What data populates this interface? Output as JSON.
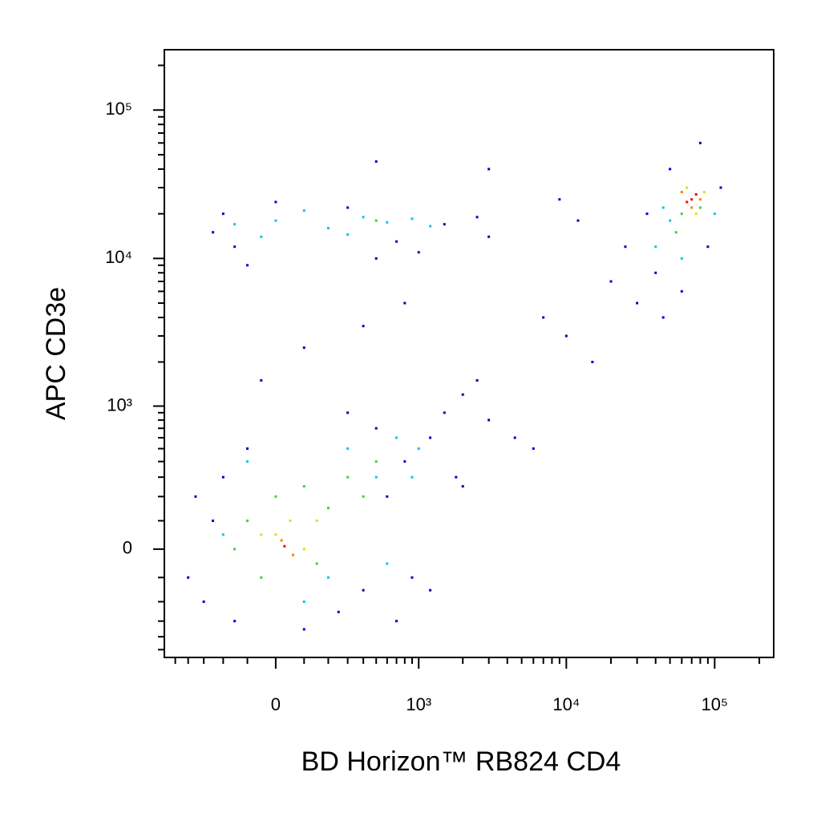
{
  "chart_data": {
    "type": "scatter",
    "x_label": "BD Horizon™ RB824 CD4",
    "y_label": "APC CD3e",
    "xscale": "biexponential",
    "yscale": "biexponential",
    "xlim": [
      -600,
      250000
    ],
    "ylim": [
      -570,
      255000
    ],
    "xticks": [
      0,
      {
        "value": 1000,
        "label": "10³"
      },
      {
        "value": 10000,
        "label": "10⁴"
      },
      {
        "value": 100000,
        "label": "10⁵"
      }
    ],
    "yticks": [
      0,
      {
        "value": 1000,
        "label": "10³"
      },
      {
        "value": 10000,
        "label": "10⁴"
      },
      {
        "value": 100000,
        "label": "10⁵"
      }
    ],
    "xminorticks": [
      -500,
      -400,
      -300,
      -200,
      -100,
      100,
      200,
      300,
      400,
      500,
      600,
      700,
      800,
      900,
      2000,
      3000,
      4000,
      5000,
      6000,
      7000,
      8000,
      9000,
      20000,
      30000,
      40000,
      50000,
      60000,
      70000,
      80000,
      90000,
      200000
    ],
    "yminorticks": [
      -500,
      -400,
      -300,
      -200,
      -100,
      100,
      200,
      300,
      400,
      500,
      600,
      700,
      800,
      900,
      2000,
      3000,
      4000,
      5000,
      6000,
      7000,
      8000,
      9000,
      20000,
      30000,
      40000,
      50000,
      60000,
      70000,
      80000,
      90000,
      200000
    ],
    "series": [
      {
        "color": "#0000c8",
        "x": [
          -300,
          -250,
          -200,
          -150,
          -100,
          250,
          400,
          600,
          800,
          1200,
          1500,
          2000,
          2500,
          3000,
          1800,
          900,
          500,
          300,
          -50,
          100,
          400,
          800,
          -150,
          -250,
          -200,
          0,
          300,
          700,
          1500,
          2500,
          3000,
          500,
          1000,
          -100,
          4500,
          6000,
          9000,
          12000,
          20000,
          25000,
          30000,
          35000,
          40000,
          45000,
          60000,
          90000,
          110000,
          50000,
          80000,
          3000,
          500,
          15000,
          10000,
          7000,
          2000,
          1200,
          -400,
          700,
          100,
          -350
        ],
        "y": [
          -200,
          100,
          300,
          -300,
          500,
          -250,
          -150,
          200,
          400,
          600,
          900,
          1200,
          1500,
          800,
          300,
          -100,
          700,
          900,
          1500,
          2500,
          3500,
          5000,
          12000,
          15000,
          20000,
          24000,
          22000,
          13000,
          17000,
          19000,
          14000,
          10000,
          11000,
          9000,
          600,
          500,
          25000,
          18000,
          7000,
          12000,
          5000,
          20000,
          8000,
          4000,
          6000,
          12000,
          30000,
          40000,
          60000,
          40000,
          45000,
          2000,
          3000,
          4000,
          250,
          -150,
          -100,
          -300,
          -350,
          200
        ]
      },
      {
        "color": "#00c8e6",
        "x": [
          -150,
          0,
          200,
          400,
          600,
          900,
          1200,
          -50,
          100,
          300,
          40000,
          50000,
          60000,
          45000,
          100000,
          -100,
          100,
          300,
          500,
          700,
          1000,
          -200,
          200,
          600,
          900
        ],
        "y": [
          17000,
          18000,
          16000,
          19000,
          17500,
          18500,
          16500,
          14000,
          21000,
          14500,
          12000,
          18000,
          10000,
          22000,
          20000,
          400,
          -200,
          500,
          300,
          600,
          500,
          50,
          -100,
          -50,
          300
        ]
      },
      {
        "color": "#40d040",
        "x": [
          -100,
          0,
          100,
          200,
          300,
          400,
          -50,
          150,
          500,
          -150,
          60000,
          55000,
          80000,
          500
        ],
        "y": [
          100,
          200,
          250,
          150,
          300,
          200,
          -100,
          -50,
          400,
          0,
          20000,
          15000,
          22000,
          18000
        ]
      },
      {
        "color": "#e0e000",
        "x": [
          0,
          50,
          100,
          -50,
          150,
          65000,
          75000,
          85000
        ],
        "y": [
          50,
          100,
          0,
          50,
          100,
          30000,
          20000,
          28000
        ]
      },
      {
        "color": "#ff8000",
        "x": [
          20,
          60,
          70000,
          60000,
          80000
        ],
        "y": [
          30,
          -20,
          22000,
          28000,
          25000
        ]
      },
      {
        "color": "#ff0000",
        "x": [
          30,
          70000,
          75000,
          65000
        ],
        "y": [
          10,
          25000,
          27000,
          24000
        ]
      }
    ]
  }
}
